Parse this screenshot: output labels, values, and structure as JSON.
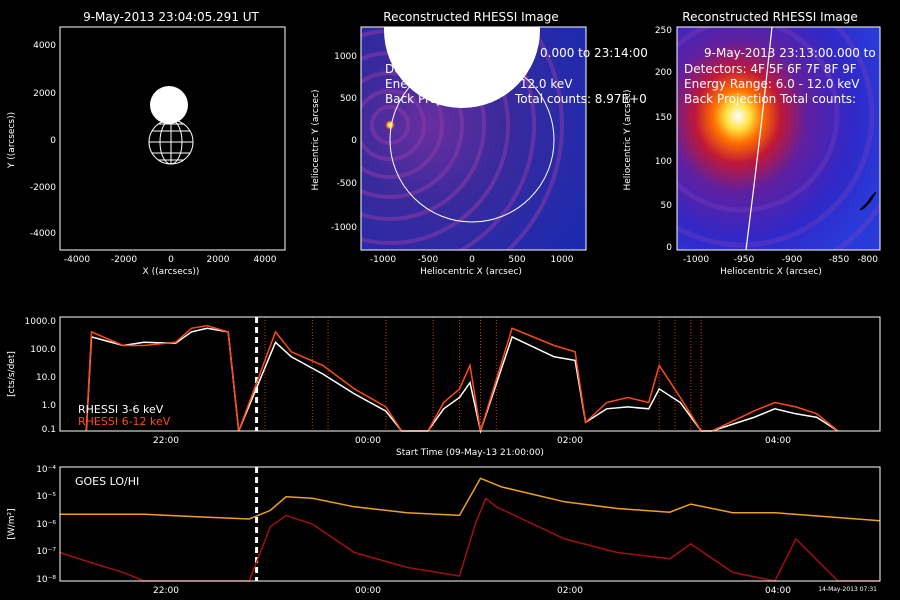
{
  "panel1": {
    "title": "9-May-2013 23:04:05.291 UT",
    "xlabel": "X ((arcsecs))",
    "ylabel": "Y ((arcsecs))",
    "xticks": [
      "-4000",
      "-2000",
      "0",
      "2000",
      "4000"
    ],
    "yticks": [
      "4000",
      "2000",
      "0",
      "-2000",
      "-4000"
    ]
  },
  "panel2": {
    "title": "Reconstructed RHESSI Image",
    "lines": [
      "0.000 to 23:14:00",
      "Dete",
      "Energ",
      "— 12.0 keV",
      "Back Projection",
      "Total counts: 8.97E+0"
    ],
    "xlabel": "Heliocentric X (arcsec)",
    "ylabel": "Heliocentric Y (arcsec)",
    "xticks": [
      "-1000",
      "-500",
      "0",
      "500",
      "1000"
    ],
    "yticks": [
      "1000",
      "500",
      "0",
      "-500",
      "-1000"
    ]
  },
  "panel3": {
    "title": "Reconstructed RHESSI Image",
    "lines": [
      "9-May-2013 23:13:00.000 to",
      "Detectors: 4F 5F 6F 7F 8F 9F",
      "Energy Range: 6.0 - 12.0 keV",
      "Back Projection     Total counts:"
    ],
    "xlabel": "Heliocentric X (arcsec)",
    "ylabel": "Heliocentric Y (arcsec)",
    "xticks": [
      "-1000",
      "-950",
      "-900",
      "-850",
      "-800"
    ],
    "yticks": [
      "250",
      "200",
      "150",
      "100",
      "50",
      "0"
    ]
  },
  "rhessi_panel": {
    "ylabel": "[cts/s/det]",
    "yticks": [
      "1000.0",
      "100.0",
      "10.0",
      "1.0",
      "0.1"
    ],
    "xticks": [
      "22:00",
      "00:00",
      "02:00",
      "04:00"
    ],
    "xlabel": "Start Time (09-May-13 21:00:00)",
    "legend": [
      "RHESSI  3-6 keV",
      "RHESSI  6-12 keV"
    ]
  },
  "goes_panel": {
    "ylabel": "[W/m²]",
    "yticks": [
      "10⁻⁴",
      "10⁻⁵",
      "10⁻⁶",
      "10⁻⁷",
      "10⁻⁸"
    ],
    "xticks": [
      "22:00",
      "00:00",
      "02:00",
      "04:00"
    ],
    "legend": "GOES LO/HI",
    "stamp": "14-May-2013 07:31"
  },
  "colors": {
    "rhessi_low": "#ffffff",
    "rhessi_high": "#ff4a10",
    "goes_low": "#f0a020",
    "goes_high": "#a01010",
    "flare_line": "#e03010"
  },
  "chart_data": [
    {
      "type": "line",
      "title": "",
      "ylabel": "[cts/s/det]",
      "xlabel": "Start Time (09-May-13 21:00:00)",
      "y_scale": "log",
      "ylim": [
        0.1,
        1000
      ],
      "x_unit": "hours",
      "xlim": [
        21.2,
        29.0
      ],
      "marker_time": 23.07,
      "flare_marks": [
        23.15,
        23.6,
        23.75,
        24.3,
        24.75,
        25.0,
        25.2,
        25.35,
        26.9,
        27.05,
        27.2,
        27.3
      ],
      "series": [
        {
          "name": "RHESSI  3-6 keV",
          "x": [
            21.45,
            21.5,
            21.8,
            22.0,
            22.3,
            22.45,
            22.6,
            22.8,
            22.9,
            23.25,
            23.4,
            23.7,
            24.0,
            24.3,
            24.45,
            24.7,
            24.85,
            25.0,
            25.1,
            25.2,
            25.5,
            25.9,
            26.1,
            26.2,
            26.4,
            26.6,
            26.8,
            26.9,
            27.1,
            27.3,
            27.4,
            27.8,
            28.0,
            28.2,
            28.4,
            28.6
          ],
          "y": [
            0.1,
            200,
            100,
            130,
            120,
            300,
            400,
            300,
            0.1,
            130,
            40,
            10,
            2,
            0.5,
            0.1,
            0.1,
            0.6,
            1.5,
            5,
            0.1,
            200,
            40,
            30,
            0.2,
            0.6,
            0.7,
            0.6,
            3,
            1.0,
            0.1,
            0.1,
            0.3,
            0.6,
            0.4,
            0.3,
            0.1
          ]
        },
        {
          "name": "RHESSI  6-12 keV",
          "x": [
            21.45,
            21.5,
            21.8,
            22.0,
            22.3,
            22.45,
            22.6,
            22.8,
            22.9,
            23.25,
            23.4,
            23.7,
            24.0,
            24.3,
            24.45,
            24.7,
            24.85,
            25.0,
            25.1,
            25.2,
            25.5,
            25.9,
            26.1,
            26.2,
            26.4,
            26.6,
            26.8,
            26.9,
            27.1,
            27.3,
            27.4,
            27.8,
            28.0,
            28.2,
            28.4,
            28.6
          ],
          "y": [
            0.1,
            300,
            100,
            100,
            130,
            400,
            500,
            300,
            0.1,
            300,
            60,
            20,
            3,
            0.7,
            0.1,
            0.1,
            1.0,
            3,
            20,
            0.1,
            400,
            100,
            60,
            0.2,
            1.0,
            1.5,
            1.0,
            20,
            1.5,
            0.1,
            0.1,
            0.5,
            1.0,
            0.7,
            0.4,
            0.1
          ]
        }
      ]
    },
    {
      "type": "line",
      "title": "",
      "ylabel": "[W/m²]",
      "y_scale": "log",
      "ylim": [
        1e-08,
        0.0001
      ],
      "x_unit": "hours",
      "xlim": [
        21.2,
        29.0
      ],
      "marker_time": 23.07,
      "series": [
        {
          "name": "GOES LO",
          "x": [
            21.2,
            22.0,
            22.5,
            23.0,
            23.2,
            23.35,
            23.6,
            24.0,
            24.5,
            25.0,
            25.2,
            25.4,
            26.0,
            26.5,
            27.0,
            27.2,
            27.6,
            28.0,
            28.5,
            29.0
          ],
          "y": [
            2.2e-06,
            2.2e-06,
            1.8e-06,
            1.5e-06,
            3e-06,
            9e-06,
            8e-06,
            4e-06,
            2.5e-06,
            2e-06,
            4e-05,
            2e-05,
            6e-06,
            3.5e-06,
            2.6e-06,
            5e-06,
            2.5e-06,
            2.5e-06,
            1.8e-06,
            1.3e-06
          ]
        },
        {
          "name": "GOES HI",
          "x": [
            21.2,
            21.45,
            21.8,
            22.0,
            22.5,
            23.0,
            23.2,
            23.35,
            23.6,
            24.0,
            24.5,
            25.0,
            25.15,
            25.25,
            25.35,
            26.0,
            26.5,
            27.0,
            27.2,
            27.6,
            28.0,
            28.2,
            28.6,
            29.0
          ],
          "y": [
            1e-07,
            5e-08,
            2e-08,
            1e-08,
            1e-08,
            1e-08,
            8e-07,
            2e-06,
            1e-06,
            1e-07,
            3e-08,
            1.5e-08,
            1e-06,
            8e-06,
            4e-06,
            3e-07,
            1e-07,
            6e-08,
            2e-07,
            2e-08,
            1e-08,
            3e-07,
            1e-08,
            1e-08
          ]
        }
      ]
    }
  ]
}
